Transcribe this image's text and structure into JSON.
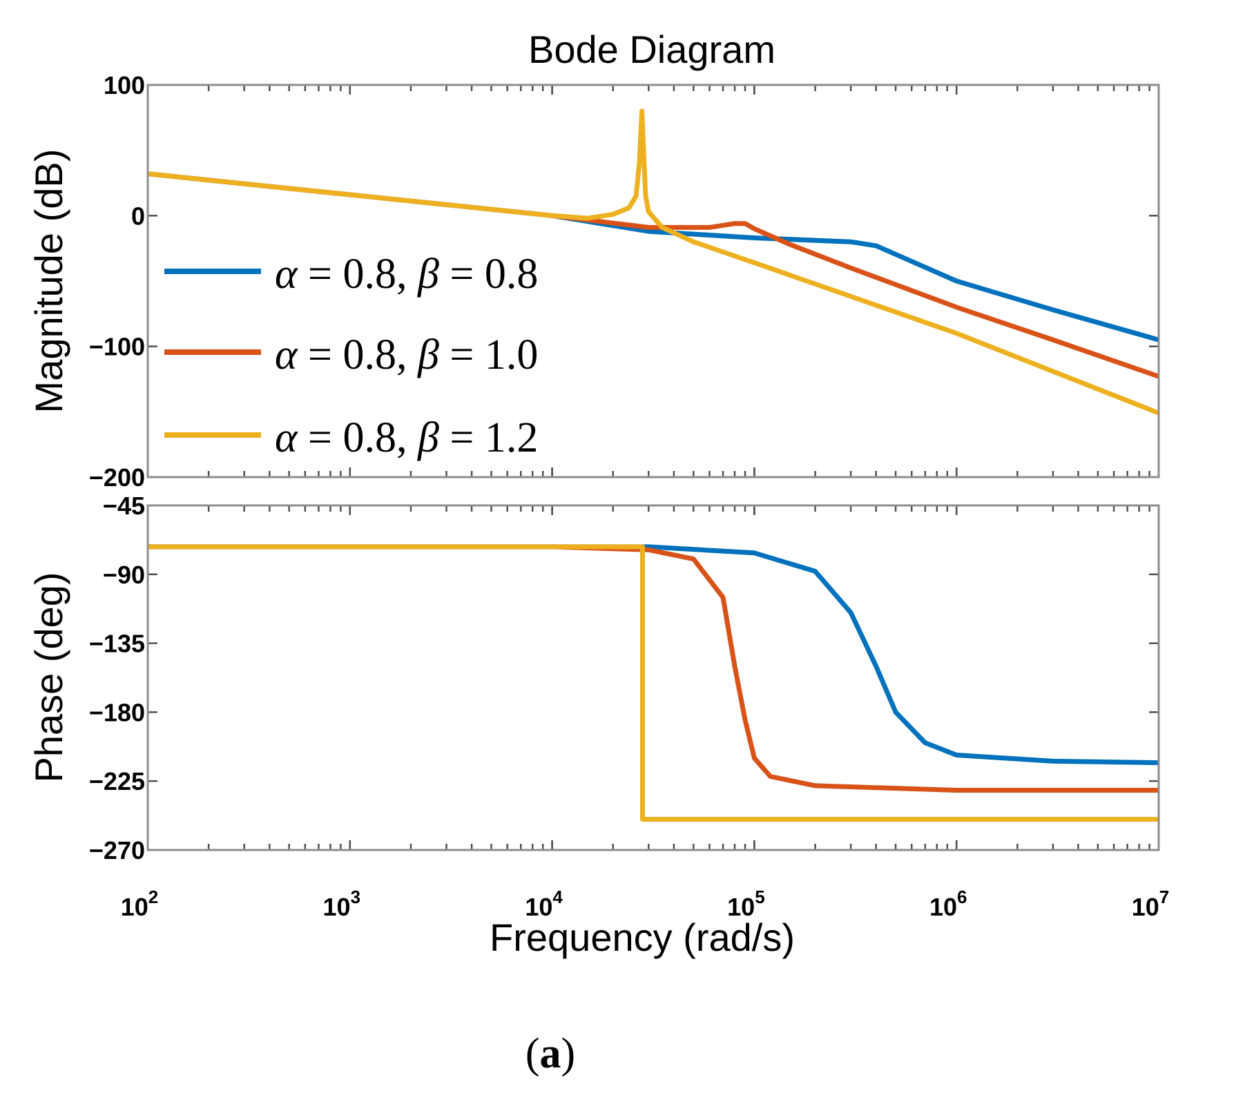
{
  "chart_data": {
    "type": "line",
    "title": "Bode Diagram",
    "xlabel": "Frequency  (rad/s)",
    "xscale": "log",
    "xlim": [
      100,
      10000000
    ],
    "x_tick_labels": [
      {
        "base": "10",
        "exp": "2",
        "value": 100
      },
      {
        "base": "10",
        "exp": "3",
        "value": 1000
      },
      {
        "base": "10",
        "exp": "4",
        "value": 10000
      },
      {
        "base": "10",
        "exp": "5",
        "value": 100000
      },
      {
        "base": "10",
        "exp": "6",
        "value": 1000000
      },
      {
        "base": "10",
        "exp": "7",
        "value": 10000000
      }
    ],
    "legend_position": "left",
    "series_styles": [
      {
        "name": "alpha = 0.8, beta = 0.8",
        "color": "#0072BD"
      },
      {
        "name": "alpha = 0.8, beta = 1.0",
        "color": "#D95319"
      },
      {
        "name": "alpha = 0.8, beta = 1.2",
        "color": "#EDB120"
      }
    ],
    "legend": [
      {
        "alpha": "0.8",
        "beta": "0.8",
        "color": "#0072BD"
      },
      {
        "alpha": "0.8",
        "beta": "1.0",
        "color": "#D95319"
      },
      {
        "alpha": "0.8",
        "beta": "1.2",
        "color": "#EDB120"
      }
    ],
    "magnitude": {
      "ylabel": "Magnitude (dB)",
      "ylim": [
        -200,
        100
      ],
      "y_tick_labels": [
        "100",
        "0",
        "−100",
        "−200"
      ],
      "y_tick_values": [
        100,
        0,
        -100,
        -200
      ],
      "series": [
        {
          "name": "alpha = 0.8, beta = 0.8",
          "points": [
            [
              100,
              32
            ],
            [
              1000,
              16
            ],
            [
              10000,
              0
            ],
            [
              30000,
              -12
            ],
            [
              100000,
              -17
            ],
            [
              300000,
              -20
            ],
            [
              400000,
              -23
            ],
            [
              1000000,
              -50
            ],
            [
              3000000,
              -72
            ],
            [
              10000000,
              -95
            ]
          ]
        },
        {
          "name": "alpha = 0.8, beta = 1.0",
          "points": [
            [
              100,
              32
            ],
            [
              1000,
              16
            ],
            [
              10000,
              0
            ],
            [
              30000,
              -9
            ],
            [
              60000,
              -9
            ],
            [
              80000,
              -6
            ],
            [
              90000,
              -6
            ],
            [
              100000,
              -10
            ],
            [
              150000,
              -22
            ],
            [
              300000,
              -40
            ],
            [
              1000000,
              -70
            ],
            [
              3000000,
              -95
            ],
            [
              10000000,
              -123
            ]
          ]
        },
        {
          "name": "alpha = 0.8, beta = 1.2",
          "points": [
            [
              100,
              32
            ],
            [
              1000,
              16
            ],
            [
              10000,
              0
            ],
            [
              15000,
              -2
            ],
            [
              20000,
              1
            ],
            [
              24000,
              6
            ],
            [
              26000,
              15
            ],
            [
              27000,
              40
            ],
            [
              27800,
              80
            ],
            [
              28500,
              40
            ],
            [
              29000,
              15
            ],
            [
              30000,
              3
            ],
            [
              35000,
              -9
            ],
            [
              50000,
              -20
            ],
            [
              100000,
              -36
            ],
            [
              1000000,
              -90
            ],
            [
              10000000,
              -151
            ]
          ]
        }
      ]
    },
    "phase": {
      "ylabel": "Phase (deg)",
      "ylim": [
        -270,
        -45
      ],
      "y_tick_labels": [
        "−45",
        "−90",
        "−135",
        "−180",
        "−225",
        "−270"
      ],
      "y_tick_values": [
        -45,
        -90,
        -135,
        -180,
        -225,
        -270
      ],
      "series": [
        {
          "name": "alpha = 0.8, beta = 0.8",
          "points": [
            [
              100,
              -72
            ],
            [
              10000,
              -72
            ],
            [
              30000,
              -72
            ],
            [
              100000,
              -76
            ],
            [
              200000,
              -88
            ],
            [
              300000,
              -115
            ],
            [
              400000,
              -150
            ],
            [
              500000,
              -180
            ],
            [
              700000,
              -200
            ],
            [
              1000000,
              -208
            ],
            [
              3000000,
              -212
            ],
            [
              10000000,
              -213
            ]
          ]
        },
        {
          "name": "alpha = 0.8, beta = 1.0",
          "points": [
            [
              100,
              -72
            ],
            [
              10000,
              -72
            ],
            [
              30000,
              -74
            ],
            [
              50000,
              -80
            ],
            [
              70000,
              -105
            ],
            [
              80000,
              -150
            ],
            [
              90000,
              -185
            ],
            [
              100000,
              -210
            ],
            [
              120000,
              -222
            ],
            [
              200000,
              -228
            ],
            [
              1000000,
              -231
            ],
            [
              10000000,
              -231
            ]
          ]
        },
        {
          "name": "alpha = 0.8, beta = 1.2",
          "points": [
            [
              100,
              -72
            ],
            [
              28000,
              -72
            ],
            [
              28000,
              -250
            ],
            [
              10000000,
              -250
            ]
          ]
        }
      ]
    }
  },
  "caption": {
    "open": "(",
    "letter": "a",
    "close": ")"
  }
}
